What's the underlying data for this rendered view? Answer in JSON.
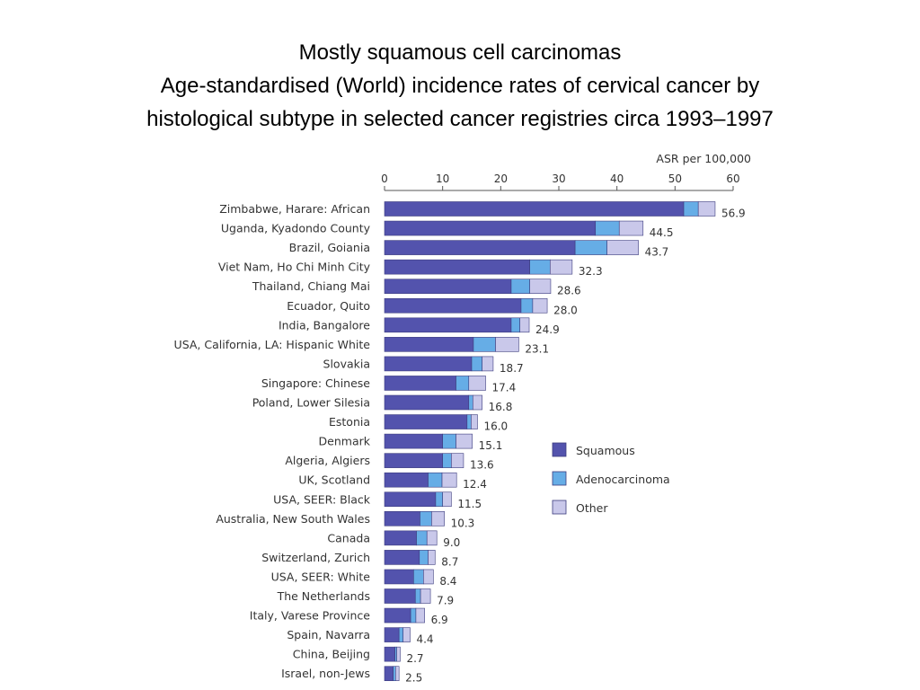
{
  "title": {
    "line1": "Mostly squamous cell carcinomas",
    "line2": "Age-standardised (World) incidence rates of cervical cancer by",
    "line3": "histological subtype in selected cancer registries circa 1993–1997"
  },
  "chart_data": {
    "type": "bar",
    "orientation": "horizontal",
    "stacked": true,
    "axis_unit": "ASR per 100,000",
    "xlim": [
      0,
      60
    ],
    "x_ticks": [
      0,
      10,
      20,
      30,
      40,
      50,
      60
    ],
    "grid": false,
    "legend_position": "right",
    "colors": {
      "Squamous": "#5353ad",
      "Adenocarcinoma": "#66ade6",
      "Other": "#c9c8ea"
    },
    "categories": [
      "Zimbabwe, Harare: African",
      "Uganda, Kyadondo County",
      "Brazil, Goiania",
      "Viet Nam, Ho Chi Minh City",
      "Thailand, Chiang Mai",
      "Ecuador, Quito",
      "India, Bangalore",
      "USA, California, LA: Hispanic White",
      "Slovakia",
      "Singapore: Chinese",
      "Poland, Lower Silesia",
      "Estonia",
      "Denmark",
      "Algeria, Algiers",
      "UK, Scotland",
      "USA, SEER: Black",
      "Australia, New South Wales",
      "Canada",
      "Switzerland, Zurich",
      "USA, SEER: White",
      "The Netherlands",
      "Italy, Varese Province",
      "Spain, Navarra",
      "China, Beijing",
      "Israel, non-Jews"
    ],
    "totals": [
      "56.9",
      "44.5",
      "43.7",
      "32.3",
      "28.6",
      "28.0",
      "24.9",
      "23.1",
      "18.7",
      "17.4",
      "16.8",
      "16.0",
      "15.1",
      "13.6",
      "12.4",
      "11.5",
      "10.3",
      "9.0",
      "8.7",
      "8.4",
      "7.9",
      "6.9",
      "4.4",
      "2.7",
      "2.5"
    ],
    "series": [
      {
        "name": "Squamous",
        "values": [
          51.5,
          36.3,
          32.8,
          25.0,
          21.8,
          23.5,
          21.8,
          15.3,
          15.0,
          12.3,
          14.5,
          14.2,
          10.0,
          10.0,
          7.5,
          8.8,
          6.1,
          5.5,
          6.0,
          5.0,
          5.3,
          4.5,
          2.5,
          1.8,
          1.5
        ]
      },
      {
        "name": "Adenocarcinoma",
        "values": [
          2.5,
          4.1,
          5.5,
          3.5,
          3.2,
          2.0,
          1.5,
          3.8,
          1.8,
          2.2,
          0.7,
          0.7,
          2.3,
          1.5,
          2.4,
          1.2,
          2.0,
          1.8,
          1.5,
          1.7,
          0.9,
          0.9,
          0.7,
          0.3,
          0.4
        ]
      },
      {
        "name": "Other",
        "values": [
          2.9,
          4.1,
          5.4,
          3.8,
          3.6,
          2.5,
          1.6,
          4.0,
          1.9,
          2.9,
          1.6,
          1.1,
          2.8,
          2.1,
          2.5,
          1.5,
          2.2,
          1.7,
          1.2,
          1.7,
          1.7,
          1.5,
          1.2,
          0.6,
          0.6
        ]
      }
    ]
  }
}
